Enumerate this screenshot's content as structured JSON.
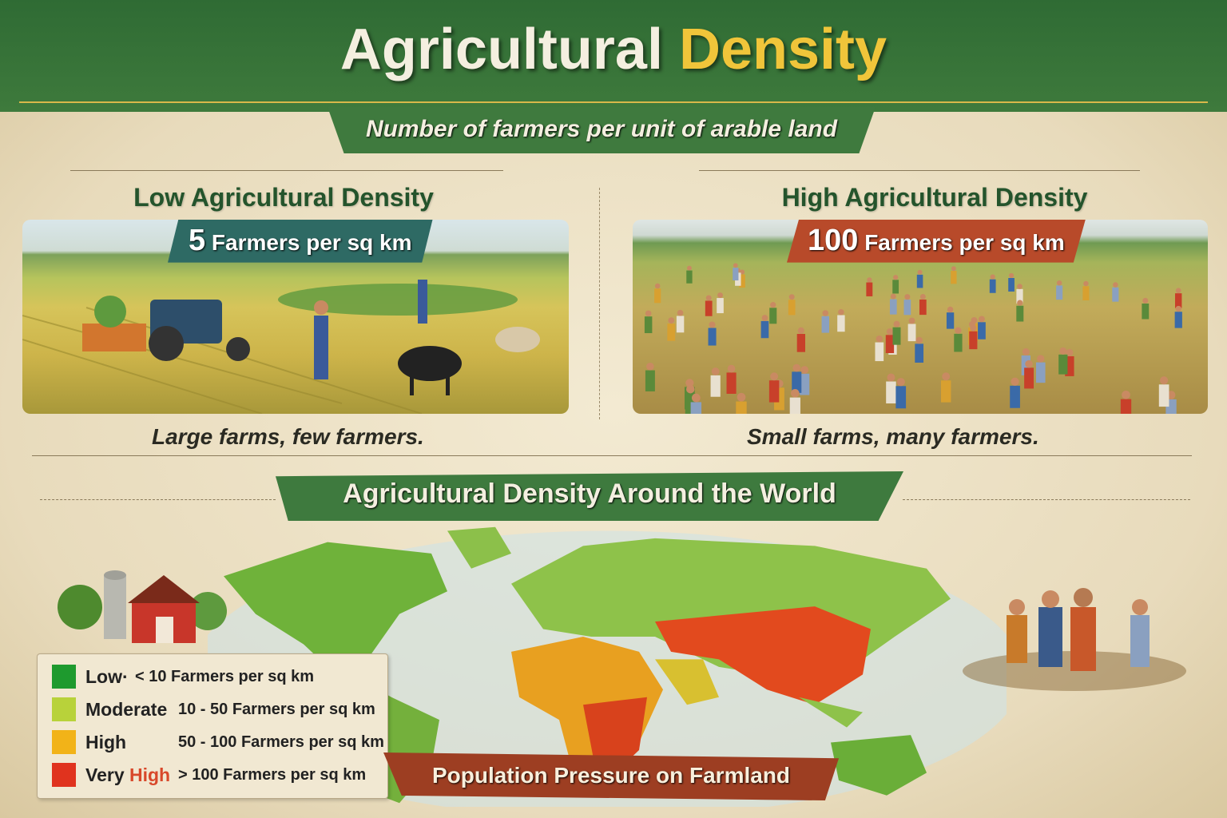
{
  "header": {
    "title_main": "Agricultural",
    "title_accent": "Density",
    "subtitle": "Number of farmers per unit of arable land"
  },
  "low_panel": {
    "title": "Low Agricultural Density",
    "badge_number": "5",
    "badge_unit": "Farmers per sq km",
    "caption": "Large farms, few farmers.",
    "badge_color": "#2e6a64"
  },
  "high_panel": {
    "title": "High Agricultural Density",
    "badge_number": "100",
    "badge_unit": "Farmers per sq km",
    "caption": "Small farms, many farmers.",
    "badge_color": "#b84a2a"
  },
  "world": {
    "title": "Agricultural Density Around the World",
    "footer_banner": "Population Pressure on Farmland"
  },
  "legend": [
    {
      "name": "Low·",
      "range": "< 10 Farmers per sq km",
      "color": "#1e9a2e"
    },
    {
      "name": "Moderate",
      "range": "10 - 50 Farmers per sq km",
      "color": "#b8d23a"
    },
    {
      "name": "High",
      "range": "50 - 100 Farmers per sq km",
      "color": "#f2b318"
    },
    {
      "name_prefix": "Very",
      "name_accent": "High",
      "range": "> 100 Farmers per sq km",
      "color": "#e0331e"
    }
  ],
  "colors": {
    "header_green": "#2f6b34",
    "title_gold": "#f0c53a",
    "banner_red": "#9d3e22"
  }
}
